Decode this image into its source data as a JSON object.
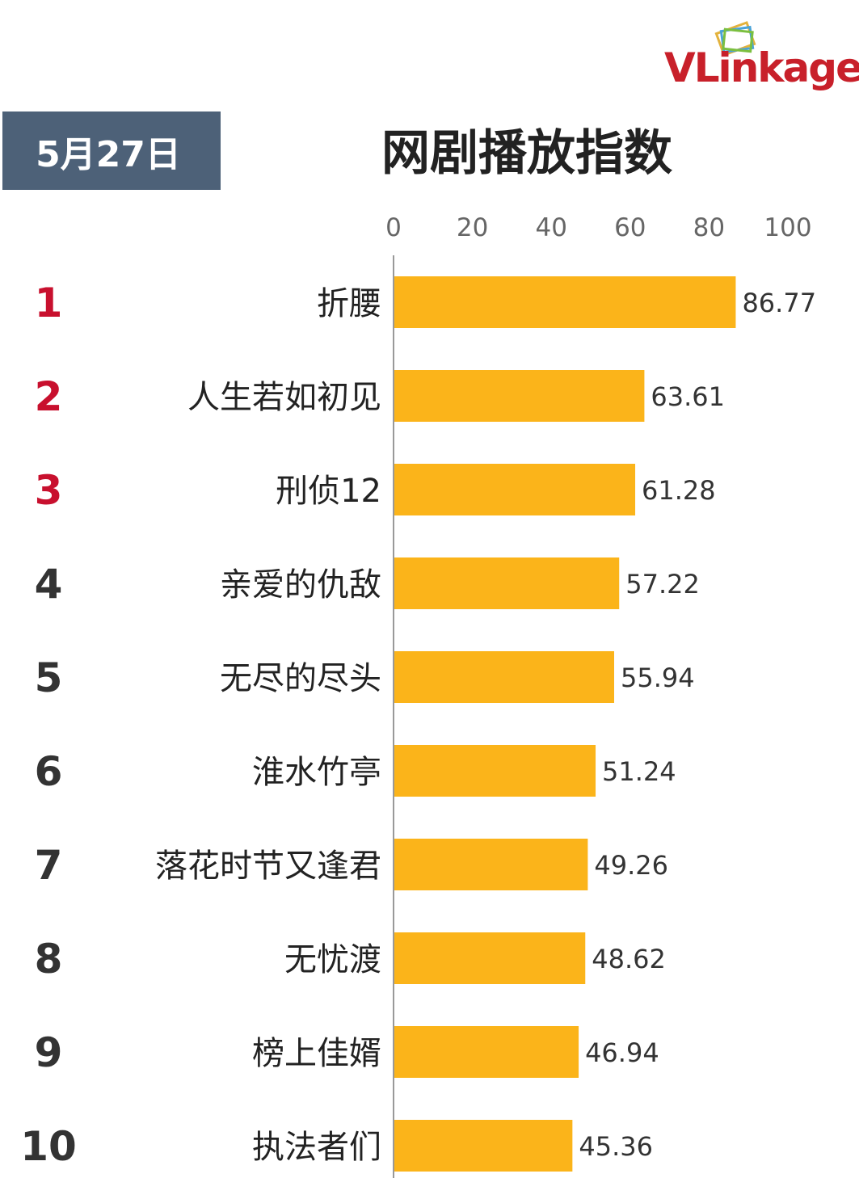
{
  "header": {
    "date": "5月27日",
    "title": "网剧播放指数",
    "logo": "VLinkage"
  },
  "chart_data": {
    "type": "bar",
    "orientation": "horizontal",
    "title": "网剧播放指数",
    "xlim": [
      0,
      100
    ],
    "ticks": [
      0,
      20,
      40,
      60,
      80,
      100
    ],
    "ranks": [
      "1",
      "2",
      "3",
      "4",
      "5",
      "6",
      "7",
      "8",
      "9",
      "10"
    ],
    "categories": [
      "折腰",
      "人生若如初见",
      "刑侦12",
      "亲爱的仇敌",
      "无尽的尽头",
      "淮水竹亭",
      "落花时节又逢君",
      "无忧渡",
      "榜上佳婿",
      "执法者们"
    ],
    "values": [
      86.77,
      63.61,
      61.28,
      57.22,
      55.94,
      51.24,
      49.26,
      48.62,
      46.94,
      45.36
    ],
    "value_labels": [
      "86.77",
      "63.61",
      "61.28",
      "57.22",
      "55.94",
      "51.24",
      "49.26",
      "48.62",
      "46.94",
      "45.36"
    ],
    "grid": false,
    "legend": "none",
    "colors": {
      "bar": "#fbb41a",
      "top_rank": "#c8102e",
      "rank": "#333333",
      "axis": "#999999",
      "tick": "#666666",
      "badge": "#4d6178"
    }
  }
}
